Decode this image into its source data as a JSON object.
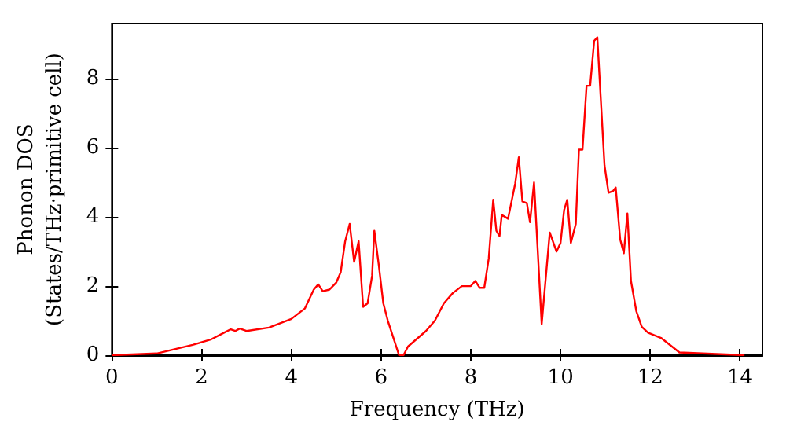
{
  "chart_data": {
    "type": "line",
    "xlabel": "Frequency (THz)",
    "ylabel": "Phonon DOS\n(States/THz·primitive cell)",
    "xlim": [
      0,
      14.5
    ],
    "xticks": [
      0,
      2,
      4,
      6,
      8,
      10,
      12,
      14
    ],
    "ylim": [
      0,
      9.6
    ],
    "yticks": [
      0,
      2,
      4,
      6,
      8
    ],
    "grid": false,
    "marker": "none",
    "line_style": "solid",
    "series": [
      {
        "color": "#ff0000",
        "x": [
          0,
          1,
          1.8,
          2.2,
          2.5,
          2.65,
          2.75,
          2.85,
          3.0,
          3.5,
          4.0,
          4.3,
          4.5,
          4.6,
          4.7,
          4.85,
          5.0,
          5.1,
          5.2,
          5.3,
          5.4,
          5.5,
          5.6,
          5.7,
          5.8,
          5.85,
          5.95,
          6.05,
          6.15,
          6.25,
          6.4,
          6.5,
          6.6,
          7.0,
          7.2,
          7.4,
          7.6,
          7.8,
          8.0,
          8.1,
          8.2,
          8.3,
          8.4,
          8.5,
          8.57,
          8.64,
          8.69,
          8.83,
          8.99,
          9.07,
          9.15,
          9.25,
          9.32,
          9.41,
          9.58,
          9.76,
          9.91,
          10.0,
          10.08,
          10.15,
          10.23,
          10.34,
          10.41,
          10.49,
          10.58,
          10.66,
          10.75,
          10.82,
          10.98,
          11.07,
          11.17,
          11.23,
          11.33,
          11.41,
          11.49,
          11.57,
          11.69,
          11.81,
          11.95,
          12.24,
          12.65,
          14.1
        ],
        "values": [
          0,
          0.05,
          0.3,
          0.45,
          0.65,
          0.75,
          0.7,
          0.77,
          0.7,
          0.8,
          1.05,
          1.35,
          1.9,
          2.05,
          1.85,
          1.9,
          2.1,
          2.4,
          3.3,
          3.8,
          2.7,
          3.3,
          1.4,
          1.5,
          2.3,
          3.6,
          2.6,
          1.5,
          1.0,
          0.6,
          0,
          0,
          0.25,
          0.7,
          1.0,
          1.5,
          1.8,
          2.0,
          2.0,
          2.15,
          1.95,
          1.95,
          2.8,
          4.5,
          3.6,
          3.45,
          4.06,
          3.95,
          4.97,
          5.73,
          4.45,
          4.4,
          3.85,
          5.0,
          0.9,
          3.55,
          3.0,
          3.25,
          4.2,
          4.5,
          3.25,
          3.8,
          5.95,
          5.95,
          7.8,
          7.8,
          9.1,
          9.2,
          5.5,
          4.7,
          4.75,
          4.85,
          3.35,
          2.95,
          4.1,
          2.15,
          1.27,
          0.82,
          0.65,
          0.5,
          0.08,
          0
        ]
      }
    ]
  }
}
